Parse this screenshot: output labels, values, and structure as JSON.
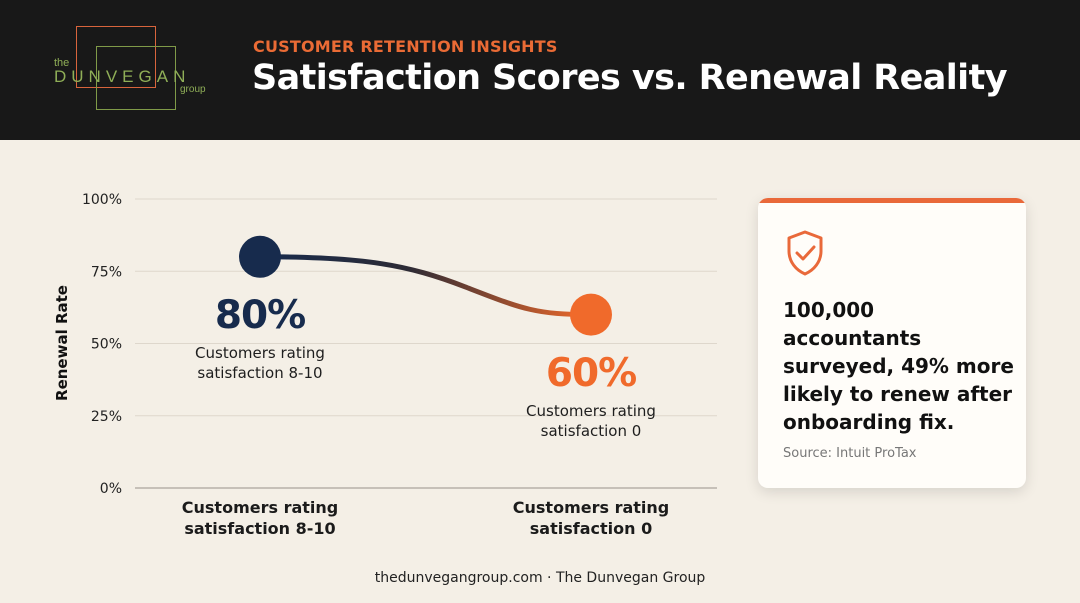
{
  "header": {
    "kicker": "CUSTOMER RETENTION INSIGHTS",
    "title": "Satisfaction Scores vs. Renewal Reality",
    "logo": {
      "the": "the",
      "name": "DUNVEGAN",
      "group": "group"
    }
  },
  "chart_data": {
    "type": "line",
    "title": "",
    "xlabel": "",
    "ylabel": "Renewal Rate",
    "categories": [
      "Customers rating satisfaction 8-10",
      "Customers rating satisfaction 0"
    ],
    "category_lines": [
      [
        "Customers rating",
        "satisfaction 8-10"
      ],
      [
        "Customers rating",
        "satisfaction 0"
      ]
    ],
    "values": [
      80,
      60
    ],
    "data_labels": [
      "80%",
      "60%"
    ],
    "point_label_lines": [
      [
        "Customers rating",
        "satisfaction 8-10"
      ],
      [
        "Customers rating",
        "satisfaction 0"
      ]
    ],
    "yticks": [
      "0%",
      "25%",
      "50%",
      "75%",
      "100%"
    ],
    "ylim": [
      0,
      100
    ],
    "grid": true,
    "colors": [
      "#172b4d",
      "#f06a2b"
    ]
  },
  "card": {
    "icon": "shield-check-icon",
    "text": "100,000 accountants surveyed, 49% more likely to renew after onboarding fix.",
    "source": "Source: Intuit ProTax",
    "accent": "#e9693a"
  },
  "footer": {
    "text": "thedunvegangroup.com · The Dunvegan Group"
  }
}
